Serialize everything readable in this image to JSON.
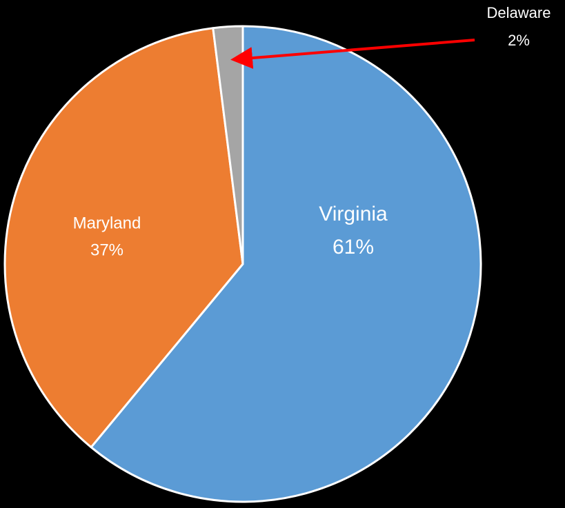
{
  "chart_data": {
    "type": "pie",
    "categories": [
      "Virginia",
      "Maryland",
      "Delaware"
    ],
    "values": [
      61,
      37,
      2
    ],
    "value_labels": [
      "61%",
      "37%",
      "2%"
    ],
    "colors": [
      "#5b9bd5",
      "#ed7d31",
      "#a5a5a5"
    ]
  }
}
